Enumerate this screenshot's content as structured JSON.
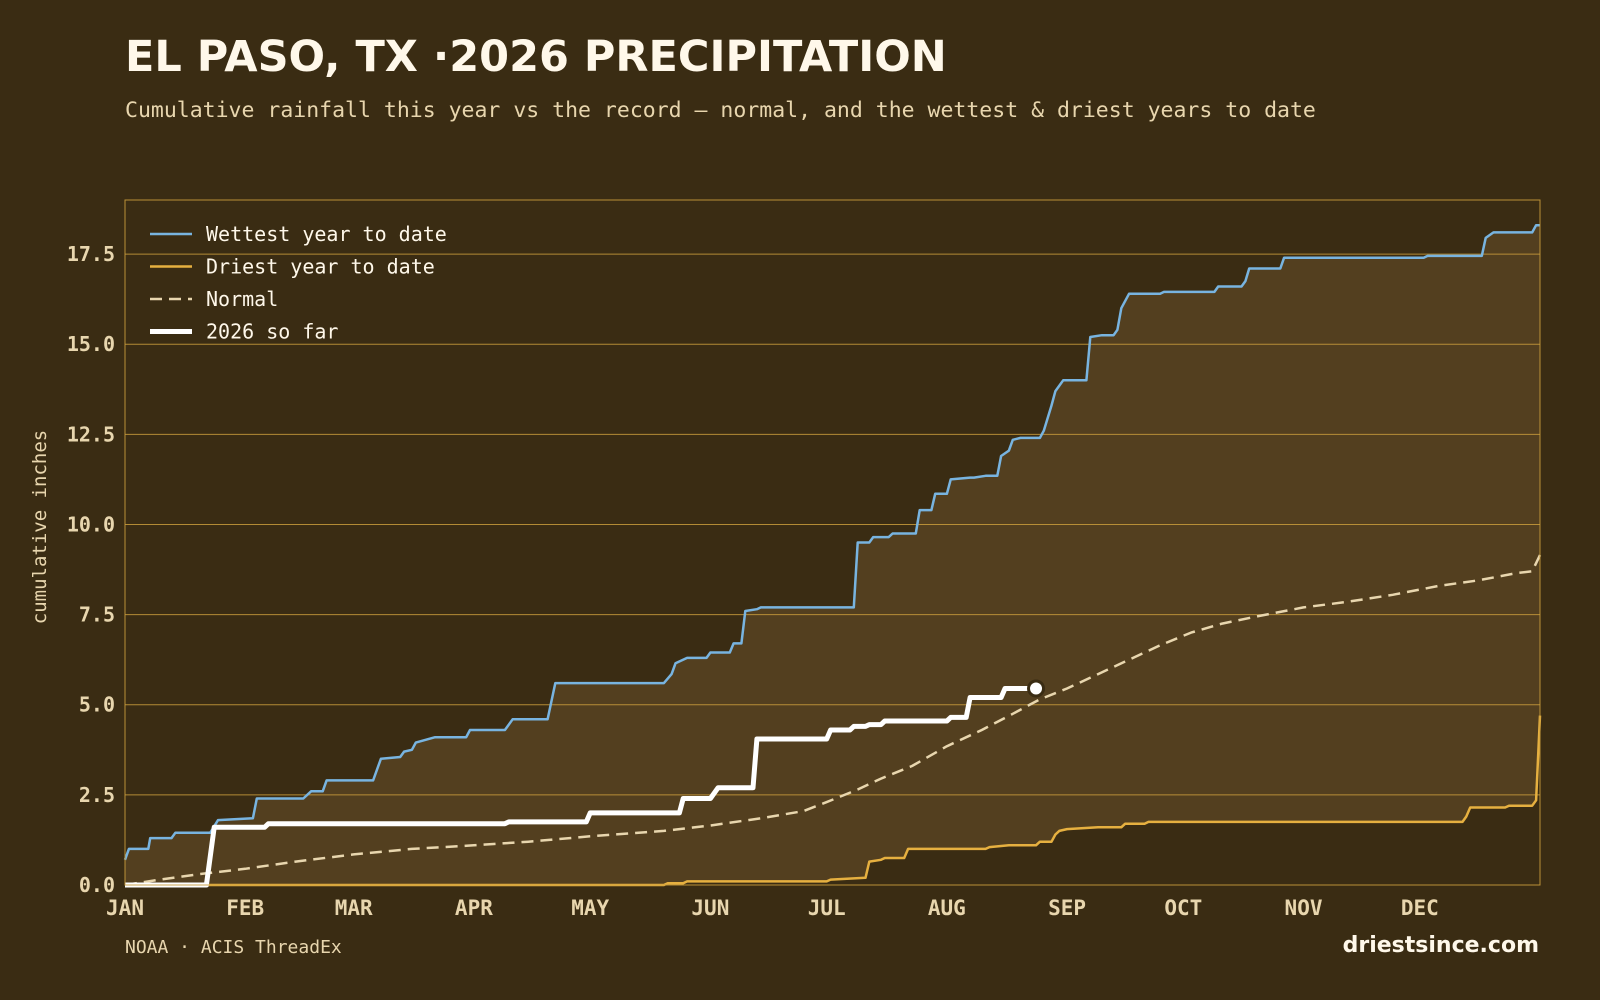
{
  "header": {
    "title": "EL PASO, TX ·2026 PRECIPITATION",
    "subtitle": "Cumulative rainfall this year vs the record — normal, and the wettest & driest years to date"
  },
  "footer": {
    "source": "NOAA · ACIS ThreadEx",
    "brand": "driestsince.com"
  },
  "colors": {
    "background": "#3a2c13",
    "band_fill": "#533f1f",
    "grid": "#c99c3c",
    "wettest": "#78b4e0",
    "driest": "#e6b040",
    "normal": "#e8d6ae",
    "current": "#ffffff",
    "tick_text": "#e8d6ae"
  },
  "chart_data": {
    "type": "line",
    "title": "EL PASO, TX ·2026 PRECIPITATION",
    "ylabel": "cumulative inches",
    "xlabel": "",
    "x_unit": "day of year",
    "xlim": [
      1,
      366
    ],
    "ylim": [
      0,
      19
    ],
    "yticks": [
      0,
      2.5,
      5,
      7.5,
      10,
      12.5,
      15,
      17.5
    ],
    "ytick_labels": [
      "0.0",
      "2.5",
      "5.0",
      "7.5",
      "10.0",
      "12.5",
      "15.0",
      "17.5"
    ],
    "xticks": [
      {
        "label": "JAN",
        "day": 1
      },
      {
        "label": "FEB",
        "day": 32
      },
      {
        "label": "MAR",
        "day": 60
      },
      {
        "label": "APR",
        "day": 91
      },
      {
        "label": "MAY",
        "day": 121
      },
      {
        "label": "JUN",
        "day": 152
      },
      {
        "label": "JUL",
        "day": 182
      },
      {
        "label": "AUG",
        "day": 213
      },
      {
        "label": "SEP",
        "day": 244
      },
      {
        "label": "OCT",
        "day": 274
      },
      {
        "label": "NOV",
        "day": 305
      },
      {
        "label": "DEC",
        "day": 335
      }
    ],
    "grid": "horizontal",
    "legend_position": "top-left",
    "series": [
      {
        "name": "Wettest year to date",
        "style": "solid",
        "color": "#78b4e0",
        "points": [
          [
            1,
            0.7
          ],
          [
            2,
            1.0
          ],
          [
            7,
            1.0
          ],
          [
            7.5,
            1.3
          ],
          [
            13,
            1.3
          ],
          [
            14,
            1.45
          ],
          [
            23,
            1.45
          ],
          [
            25,
            1.8
          ],
          [
            34,
            1.85
          ],
          [
            35,
            2.4
          ],
          [
            47,
            2.4
          ],
          [
            49,
            2.6
          ],
          [
            52,
            2.6
          ],
          [
            53,
            2.9
          ],
          [
            65,
            2.9
          ],
          [
            67,
            3.5
          ],
          [
            72,
            3.55
          ],
          [
            73,
            3.7
          ],
          [
            75,
            3.75
          ],
          [
            76,
            3.95
          ],
          [
            81,
            4.1
          ],
          [
            89,
            4.1
          ],
          [
            90,
            4.3
          ],
          [
            99,
            4.3
          ],
          [
            101,
            4.6
          ],
          [
            110,
            4.6
          ],
          [
            112,
            5.6
          ],
          [
            140,
            5.6
          ],
          [
            142,
            5.85
          ],
          [
            143,
            6.15
          ],
          [
            146,
            6.3
          ],
          [
            151,
            6.3
          ],
          [
            152,
            6.45
          ],
          [
            157,
            6.45
          ],
          [
            158,
            6.7
          ],
          [
            160,
            6.7
          ],
          [
            161,
            7.6
          ],
          [
            164,
            7.65
          ],
          [
            165,
            7.7
          ],
          [
            189,
            7.7
          ],
          [
            190,
            9.5
          ],
          [
            193,
            9.5
          ],
          [
            194,
            9.65
          ],
          [
            198,
            9.65
          ],
          [
            199,
            9.75
          ],
          [
            205,
            9.75
          ],
          [
            206,
            10.4
          ],
          [
            209,
            10.4
          ],
          [
            210,
            10.85
          ],
          [
            213,
            10.85
          ],
          [
            214,
            11.25
          ],
          [
            219,
            11.3
          ],
          [
            220,
            11.3
          ],
          [
            223,
            11.35
          ],
          [
            226,
            11.35
          ],
          [
            227,
            11.9
          ],
          [
            229,
            12.05
          ],
          [
            230,
            12.35
          ],
          [
            232,
            12.4
          ],
          [
            237,
            12.4
          ],
          [
            238,
            12.6
          ],
          [
            240,
            13.3
          ],
          [
            241,
            13.7
          ],
          [
            243,
            14.0
          ],
          [
            249,
            14.0
          ],
          [
            250,
            15.2
          ],
          [
            253,
            15.25
          ],
          [
            256,
            15.25
          ],
          [
            257,
            15.4
          ],
          [
            258,
            16.0
          ],
          [
            260,
            16.4
          ],
          [
            268,
            16.4
          ],
          [
            269,
            16.45
          ],
          [
            282,
            16.45
          ],
          [
            283,
            16.6
          ],
          [
            289,
            16.6
          ],
          [
            290,
            16.75
          ],
          [
            291,
            17.1
          ],
          [
            299,
            17.1
          ],
          [
            300,
            17.4
          ],
          [
            336,
            17.4
          ],
          [
            337,
            17.45
          ],
          [
            351,
            17.45
          ],
          [
            352,
            17.95
          ],
          [
            354,
            18.1
          ],
          [
            364,
            18.1
          ],
          [
            365,
            18.3
          ],
          [
            366,
            18.3
          ]
        ]
      },
      {
        "name": "Driest year to date",
        "style": "solid",
        "color": "#e6b040",
        "points": [
          [
            1,
            0.0
          ],
          [
            65,
            0.0
          ],
          [
            140,
            0.0
          ],
          [
            141,
            0.05
          ],
          [
            145,
            0.05
          ],
          [
            146,
            0.1
          ],
          [
            182,
            0.1
          ],
          [
            183,
            0.15
          ],
          [
            192,
            0.2
          ],
          [
            193,
            0.65
          ],
          [
            196,
            0.7
          ],
          [
            197,
            0.75
          ],
          [
            202,
            0.75
          ],
          [
            203,
            1.0
          ],
          [
            223,
            1.0
          ],
          [
            224,
            1.05
          ],
          [
            229,
            1.1
          ],
          [
            236,
            1.1
          ],
          [
            237,
            1.2
          ],
          [
            240,
            1.2
          ],
          [
            241,
            1.4
          ],
          [
            242,
            1.5
          ],
          [
            244,
            1.55
          ],
          [
            252,
            1.6
          ],
          [
            258,
            1.6
          ],
          [
            259,
            1.7
          ],
          [
            264,
            1.7
          ],
          [
            265,
            1.75
          ],
          [
            346,
            1.75
          ],
          [
            347,
            1.9
          ],
          [
            348,
            2.15
          ],
          [
            357,
            2.15
          ],
          [
            358,
            2.2
          ],
          [
            364,
            2.2
          ],
          [
            365,
            2.35
          ],
          [
            366,
            4.7
          ]
        ]
      },
      {
        "name": "Normal",
        "style": "dashed",
        "color": "#e8d6ae",
        "points": [
          [
            1,
            0.0
          ],
          [
            10,
            0.15
          ],
          [
            20,
            0.3
          ],
          [
            32,
            0.45
          ],
          [
            45,
            0.65
          ],
          [
            60,
            0.85
          ],
          [
            75,
            1.0
          ],
          [
            91,
            1.1
          ],
          [
            105,
            1.2
          ],
          [
            121,
            1.35
          ],
          [
            140,
            1.5
          ],
          [
            152,
            1.65
          ],
          [
            165,
            1.85
          ],
          [
            176,
            2.05
          ],
          [
            182,
            2.3
          ],
          [
            190,
            2.65
          ],
          [
            196,
            2.95
          ],
          [
            204,
            3.3
          ],
          [
            213,
            3.85
          ],
          [
            222,
            4.3
          ],
          [
            230,
            4.75
          ],
          [
            237,
            5.15
          ],
          [
            244,
            5.45
          ],
          [
            252,
            5.85
          ],
          [
            260,
            6.25
          ],
          [
            268,
            6.65
          ],
          [
            276,
            7.0
          ],
          [
            284,
            7.25
          ],
          [
            293,
            7.45
          ],
          [
            305,
            7.7
          ],
          [
            316,
            7.85
          ],
          [
            328,
            8.05
          ],
          [
            340,
            8.3
          ],
          [
            350,
            8.45
          ],
          [
            360,
            8.65
          ],
          [
            364,
            8.7
          ],
          [
            366,
            9.15
          ]
        ]
      },
      {
        "name": "2026 so far",
        "style": "solid-thick",
        "color": "#ffffff",
        "marker_at_last": true,
        "points": [
          [
            1,
            0.0
          ],
          [
            22,
            0.0
          ],
          [
            24,
            1.6
          ],
          [
            37,
            1.6
          ],
          [
            38,
            1.7
          ],
          [
            99,
            1.7
          ],
          [
            100,
            1.75
          ],
          [
            120,
            1.75
          ],
          [
            121,
            2.0
          ],
          [
            144,
            2.0
          ],
          [
            145,
            2.4
          ],
          [
            152,
            2.4
          ],
          [
            154,
            2.7
          ],
          [
            163,
            2.7
          ],
          [
            164,
            4.05
          ],
          [
            182,
            4.05
          ],
          [
            183,
            4.3
          ],
          [
            188,
            4.3
          ],
          [
            189,
            4.4
          ],
          [
            192,
            4.4
          ],
          [
            193,
            4.45
          ],
          [
            196,
            4.45
          ],
          [
            197,
            4.55
          ],
          [
            213,
            4.55
          ],
          [
            214,
            4.65
          ],
          [
            218,
            4.65
          ],
          [
            219,
            5.2
          ],
          [
            227,
            5.2
          ],
          [
            228,
            5.45
          ],
          [
            236,
            5.45
          ]
        ]
      }
    ]
  }
}
